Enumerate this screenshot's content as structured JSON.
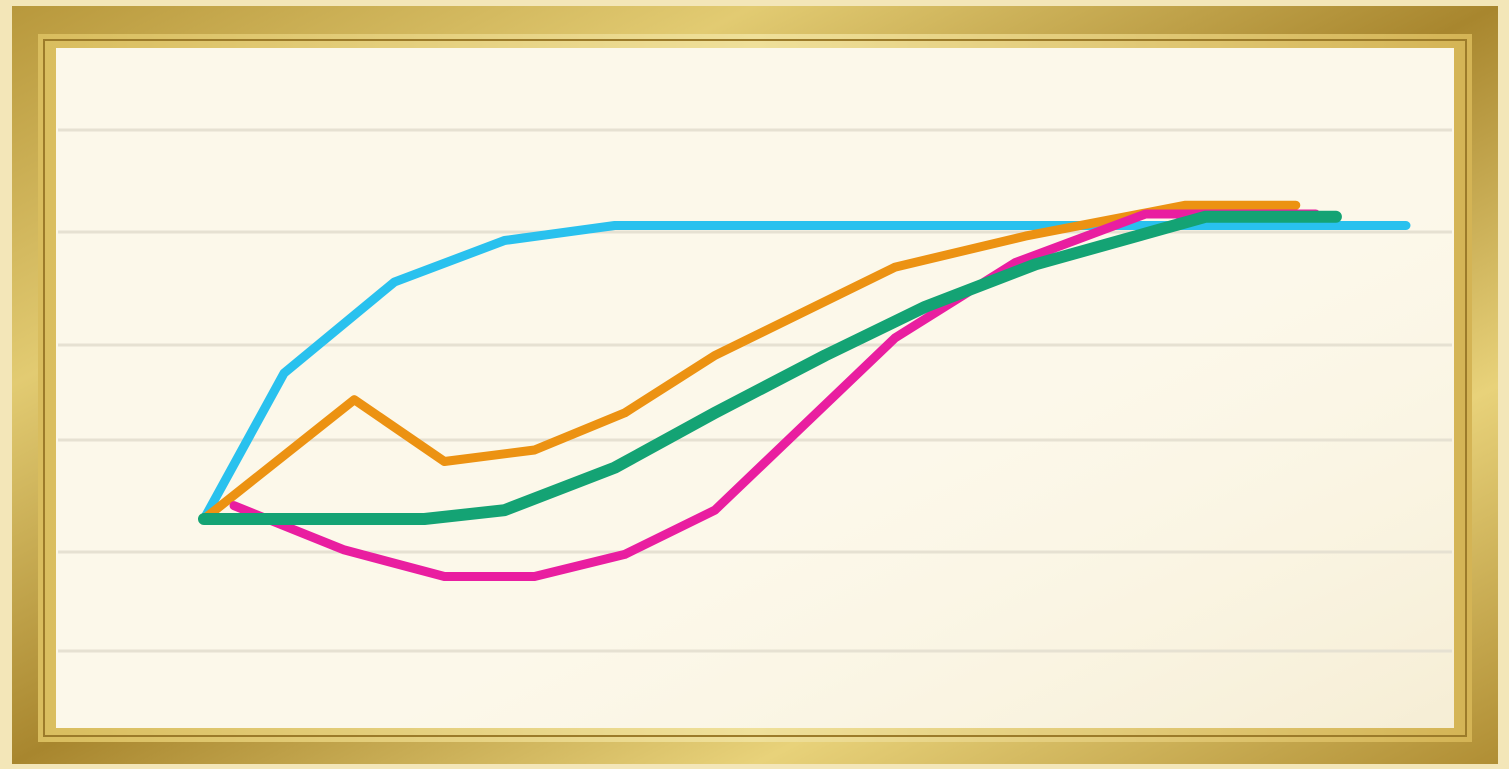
{
  "chart_data": {
    "type": "line",
    "title": "",
    "xlabel": "",
    "ylabel": "",
    "grid": true,
    "legend": "none",
    "background_color": "#fcf8ea",
    "frame_color": "#c9a94a",
    "gridline_count": 6,
    "xlim": [
      0,
      12
    ],
    "ylim": [
      -1,
      5.5
    ],
    "series": [
      {
        "color": "#29c1ee",
        "x": [
          0,
          0.8,
          1.9,
          3.0,
          4.1,
          5.3,
          12.0
        ],
        "y": [
          0,
          1.65,
          2.68,
          3.15,
          3.32,
          3.32,
          3.32
        ]
      },
      {
        "color": "#ec9212",
        "x": [
          0,
          1.5,
          2.4,
          3.3,
          4.2,
          5.1,
          6.9,
          8.2,
          9.8,
          10.9
        ],
        "y": [
          0,
          1.35,
          0.65,
          0.78,
          1.2,
          1.85,
          2.85,
          3.2,
          3.55,
          3.55
        ]
      },
      {
        "color": "#e91ea0",
        "x": [
          0.3,
          1.4,
          2.4,
          3.3,
          4.2,
          5.1,
          6.9,
          8.1,
          9.4,
          10.1,
          11.1
        ],
        "y": [
          0.15,
          -0.35,
          -0.65,
          -0.65,
          -0.4,
          0.1,
          2.05,
          2.9,
          3.45,
          3.45,
          3.45
        ]
      },
      {
        "color": "#14a374",
        "x": [
          0,
          2.2,
          3.0,
          4.1,
          5.1,
          6.2,
          7.2,
          8.3,
          10.0,
          11.3
        ],
        "y": [
          0,
          0,
          0.1,
          0.58,
          1.2,
          1.85,
          2.4,
          2.88,
          3.42,
          3.42
        ]
      }
    ]
  }
}
